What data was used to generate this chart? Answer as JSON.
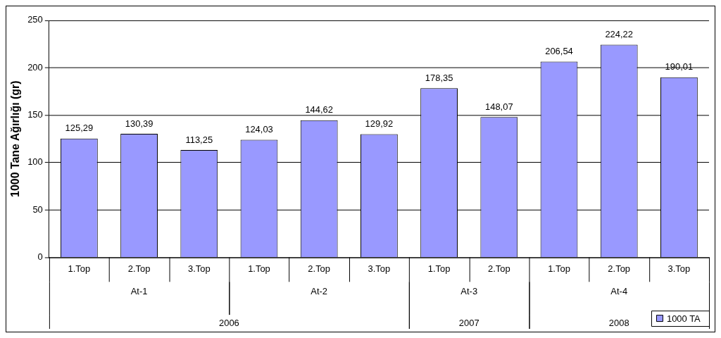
{
  "chart_data": {
    "type": "bar",
    "ylabel": "1000 Tane Ağırlığı (gr)",
    "categories": [
      "1.Top",
      "2.Top",
      "3.Top",
      "1.Top",
      "2.Top",
      "3.Top",
      "1.Top",
      "2.Top",
      "1.Top",
      "2.Top",
      "3.Top"
    ],
    "series": [
      {
        "name": "1000 TA",
        "color": "#9999ff",
        "values": [
          125.29,
          130.39,
          113.25,
          124.03,
          144.62,
          129.92,
          178.35,
          148.07,
          206.54,
          224.22,
          190.01
        ],
        "value_labels": [
          "125,29",
          "130,39",
          "113,25",
          "124,03",
          "144,62",
          "129,92",
          "178,35",
          "148,07",
          "206,54",
          "224,22",
          "190,01"
        ]
      }
    ],
    "annotations": [
      "At-1",
      "At-2",
      "At-3",
      "At-4",
      "2006",
      "2007",
      "2008"
    ],
    "ylim": [
      0,
      250
    ],
    "yticks": [
      0,
      50,
      100,
      150,
      200,
      250
    ],
    "grid": "y",
    "legend": "bottom right"
  }
}
